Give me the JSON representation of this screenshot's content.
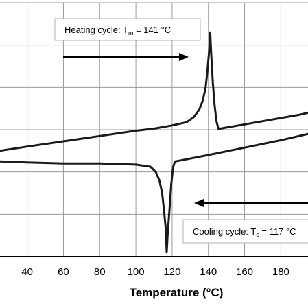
{
  "chart_data": {
    "type": "line",
    "title": "",
    "xlabel": "Temperature (°C)",
    "ylabel": "",
    "xlim": [
      25,
      195
    ],
    "ylim": [
      0,
      12
    ],
    "x_ticks": [
      40,
      60,
      80,
      100,
      120,
      140,
      160,
      180
    ],
    "grid": true,
    "legend": "none",
    "colors": {
      "curve": "#1a1a1a",
      "grid": "#9a9a9a",
      "axis": "#000000",
      "box_border": "#b0b0b0"
    },
    "series": [
      {
        "x": [
          25,
          40,
          60,
          80,
          100,
          110,
          120,
          128,
          132,
          135,
          137,
          138.5,
          139.5,
          140.5,
          141,
          141.5,
          142.5,
          143.5,
          144.5,
          145.5,
          146.5,
          150,
          160,
          170,
          180,
          190,
          195
        ],
        "y": [
          5.0,
          5.2,
          5.45,
          5.7,
          5.95,
          6.05,
          6.2,
          6.35,
          6.6,
          6.95,
          7.4,
          8.0,
          8.8,
          9.8,
          10.6,
          9.7,
          8.2,
          7.1,
          6.4,
          6.05,
          6.05,
          6.1,
          6.25,
          6.4,
          6.55,
          6.7,
          6.8
        ]
      },
      {
        "x": [
          25,
          40,
          60,
          80,
          100,
          108,
          111,
          113,
          114.5,
          115.5,
          116.5,
          117,
          117.5,
          118.5,
          119.5,
          120.5,
          121.5,
          125,
          140,
          160,
          180,
          195
        ],
        "y": [
          4.5,
          4.45,
          4.4,
          4.4,
          4.35,
          4.25,
          4.0,
          3.6,
          3.0,
          2.2,
          1.3,
          0.2,
          1.0,
          2.2,
          3.4,
          4.2,
          4.5,
          4.55,
          4.8,
          5.15,
          5.5,
          5.8
        ]
      }
    ],
    "annotations": [
      {
        "text": "Heating cycle: T",
        "subscript": "m",
        "suffix": " = 141 °C",
        "arrow": "right"
      },
      {
        "text": "Cooling cycle: T",
        "subscript": "c",
        "suffix": " = 117 °C",
        "arrow": "left"
      }
    ]
  }
}
